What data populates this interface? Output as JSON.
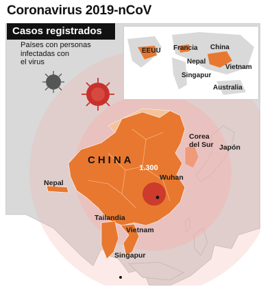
{
  "title": "Coronavirus 2019-nCoV",
  "banner": "Casos registrados",
  "legend": [
    "Países con personas",
    "infectadas con",
    "el virus"
  ],
  "count": "1.300",
  "map_labels": {
    "china": "CHINA",
    "corea": [
      "Corea",
      "del Sur"
    ],
    "japon": "Japón",
    "wuhan": "Wuhan",
    "nepal": "Nepal",
    "tailandia": "Tailandia",
    "vietnam": "Vietnam",
    "singapur": "Singapur"
  },
  "inset_labels": {
    "eeuu": "EEUU",
    "francia": "Francia",
    "china": "China",
    "nepal": "Nepal",
    "vietnam": "Vietnam",
    "singapur": "Singapur",
    "australia": "Australia"
  },
  "colors": {
    "land": "#d9d9d9",
    "sea": "#ffffff",
    "affected": "#e8782f",
    "affected_light": "#f5c39a",
    "circle": "#f3b2ae",
    "virus_red": "#c8302c",
    "virus_gray": "#555555"
  }
}
